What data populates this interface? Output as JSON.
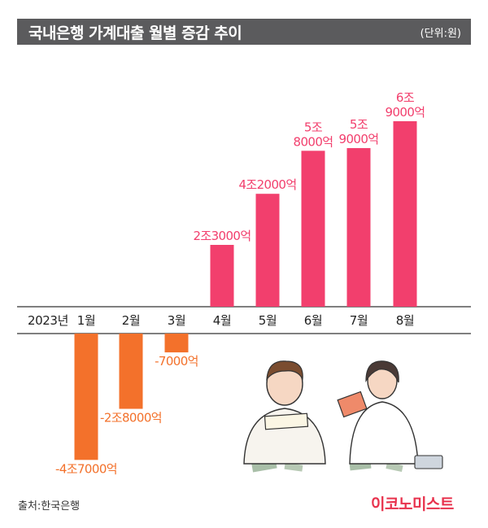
{
  "title": "국내은행 가계대출 월별 증감 추이",
  "unit": "(단위:원)",
  "source": "출처:한국은행",
  "brand": "이코노미스트",
  "colors": {
    "positive": "#f23f6d",
    "negative": "#f3712b",
    "title_bg": "#5b5b5d"
  },
  "chart_data": {
    "type": "bar",
    "year_label": "2023년",
    "categories": [
      "1월",
      "2월",
      "3월",
      "4월",
      "5월",
      "6월",
      "7월",
      "8월"
    ],
    "values": [
      -47000,
      -28000,
      -7000,
      23000,
      42000,
      58000,
      59000,
      69000
    ],
    "value_unit": "억원",
    "data_labels": [
      [
        "-4조7000억"
      ],
      [
        "-2조8000억"
      ],
      [
        "-7000억"
      ],
      [
        "2조3000억"
      ],
      [
        "4조2000억"
      ],
      [
        "5조",
        "8000억"
      ],
      [
        "5조",
        "9000억"
      ],
      [
        "6조",
        "9000억"
      ]
    ]
  }
}
